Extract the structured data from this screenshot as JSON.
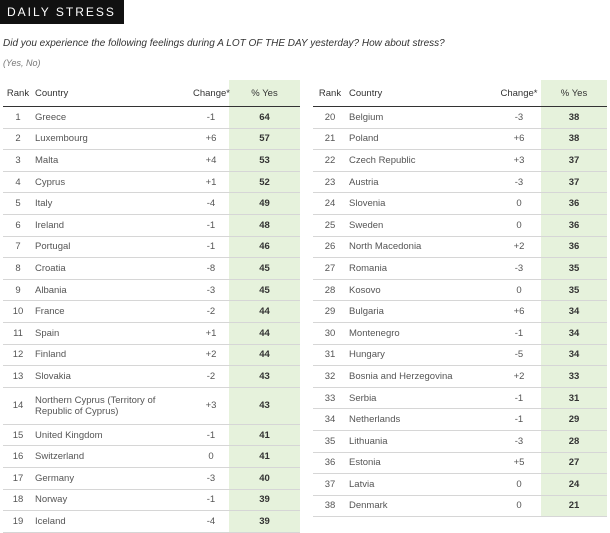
{
  "header": {
    "badge": "DAILY STRESS",
    "question": "Did you experience the following feelings during A LOT OF THE DAY yesterday? How about stress?",
    "answers": "(Yes, No)"
  },
  "columns": {
    "rank": "Rank",
    "country": "Country",
    "change": "Change*",
    "pct": "% Yes"
  },
  "left_rows": [
    {
      "rank": "1",
      "country": "Greece",
      "change": "-1",
      "pct": "64"
    },
    {
      "rank": "2",
      "country": "Luxembourg",
      "change": "+6",
      "pct": "57"
    },
    {
      "rank": "3",
      "country": "Malta",
      "change": "+4",
      "pct": "53"
    },
    {
      "rank": "4",
      "country": "Cyprus",
      "change": "+1",
      "pct": "52"
    },
    {
      "rank": "5",
      "country": "Italy",
      "change": "-4",
      "pct": "49"
    },
    {
      "rank": "6",
      "country": "Ireland",
      "change": "-1",
      "pct": "48"
    },
    {
      "rank": "7",
      "country": "Portugal",
      "change": "-1",
      "pct": "46"
    },
    {
      "rank": "8",
      "country": "Croatia",
      "change": "-8",
      "pct": "45"
    },
    {
      "rank": "9",
      "country": "Albania",
      "change": "-3",
      "pct": "45"
    },
    {
      "rank": "10",
      "country": "France",
      "change": "-2",
      "pct": "44"
    },
    {
      "rank": "11",
      "country": "Spain",
      "change": "+1",
      "pct": "44"
    },
    {
      "rank": "12",
      "country": "Finland",
      "change": "+2",
      "pct": "44"
    },
    {
      "rank": "13",
      "country": "Slovakia",
      "change": "-2",
      "pct": "43"
    },
    {
      "rank": "14",
      "country": "Northern Cyprus (Territory of Republic of Cyprus)",
      "change": "+3",
      "pct": "43"
    },
    {
      "rank": "15",
      "country": "United Kingdom",
      "change": "-1",
      "pct": "41"
    },
    {
      "rank": "16",
      "country": "Switzerland",
      "change": "0",
      "pct": "41"
    },
    {
      "rank": "17",
      "country": "Germany",
      "change": "-3",
      "pct": "40"
    },
    {
      "rank": "18",
      "country": "Norway",
      "change": "-1",
      "pct": "39"
    },
    {
      "rank": "19",
      "country": "Iceland",
      "change": "-4",
      "pct": "39"
    }
  ],
  "right_rows": [
    {
      "rank": "20",
      "country": "Belgium",
      "change": "-3",
      "pct": "38"
    },
    {
      "rank": "21",
      "country": "Poland",
      "change": "+6",
      "pct": "38"
    },
    {
      "rank": "22",
      "country": "Czech Republic",
      "change": "+3",
      "pct": "37"
    },
    {
      "rank": "23",
      "country": "Austria",
      "change": "-3",
      "pct": "37"
    },
    {
      "rank": "24",
      "country": "Slovenia",
      "change": "0",
      "pct": "36"
    },
    {
      "rank": "25",
      "country": "Sweden",
      "change": "0",
      "pct": "36"
    },
    {
      "rank": "26",
      "country": "North Macedonia",
      "change": "+2",
      "pct": "36"
    },
    {
      "rank": "27",
      "country": "Romania",
      "change": "-3",
      "pct": "35"
    },
    {
      "rank": "28",
      "country": "Kosovo",
      "change": "0",
      "pct": "35"
    },
    {
      "rank": "29",
      "country": "Bulgaria",
      "change": "+6",
      "pct": "34"
    },
    {
      "rank": "30",
      "country": "Montenegro",
      "change": "-1",
      "pct": "34"
    },
    {
      "rank": "31",
      "country": "Hungary",
      "change": "-5",
      "pct": "34"
    },
    {
      "rank": "32",
      "country": "Bosnia and Herzegovina",
      "change": "+2",
      "pct": "33"
    },
    {
      "rank": "33",
      "country": "Serbia",
      "change": "-1",
      "pct": "31"
    },
    {
      "rank": "34",
      "country": "Netherlands",
      "change": "-1",
      "pct": "29"
    },
    {
      "rank": "35",
      "country": "Lithuania",
      "change": "-3",
      "pct": "28"
    },
    {
      "rank": "36",
      "country": "Estonia",
      "change": "+5",
      "pct": "27"
    },
    {
      "rank": "37",
      "country": "Latvia",
      "change": "0",
      "pct": "24"
    },
    {
      "rank": "38",
      "country": "Denmark",
      "change": "0",
      "pct": "21"
    }
  ],
  "colors": {
    "badge_bg": "#111111",
    "pct_column_bg": "#e6f2dc"
  }
}
